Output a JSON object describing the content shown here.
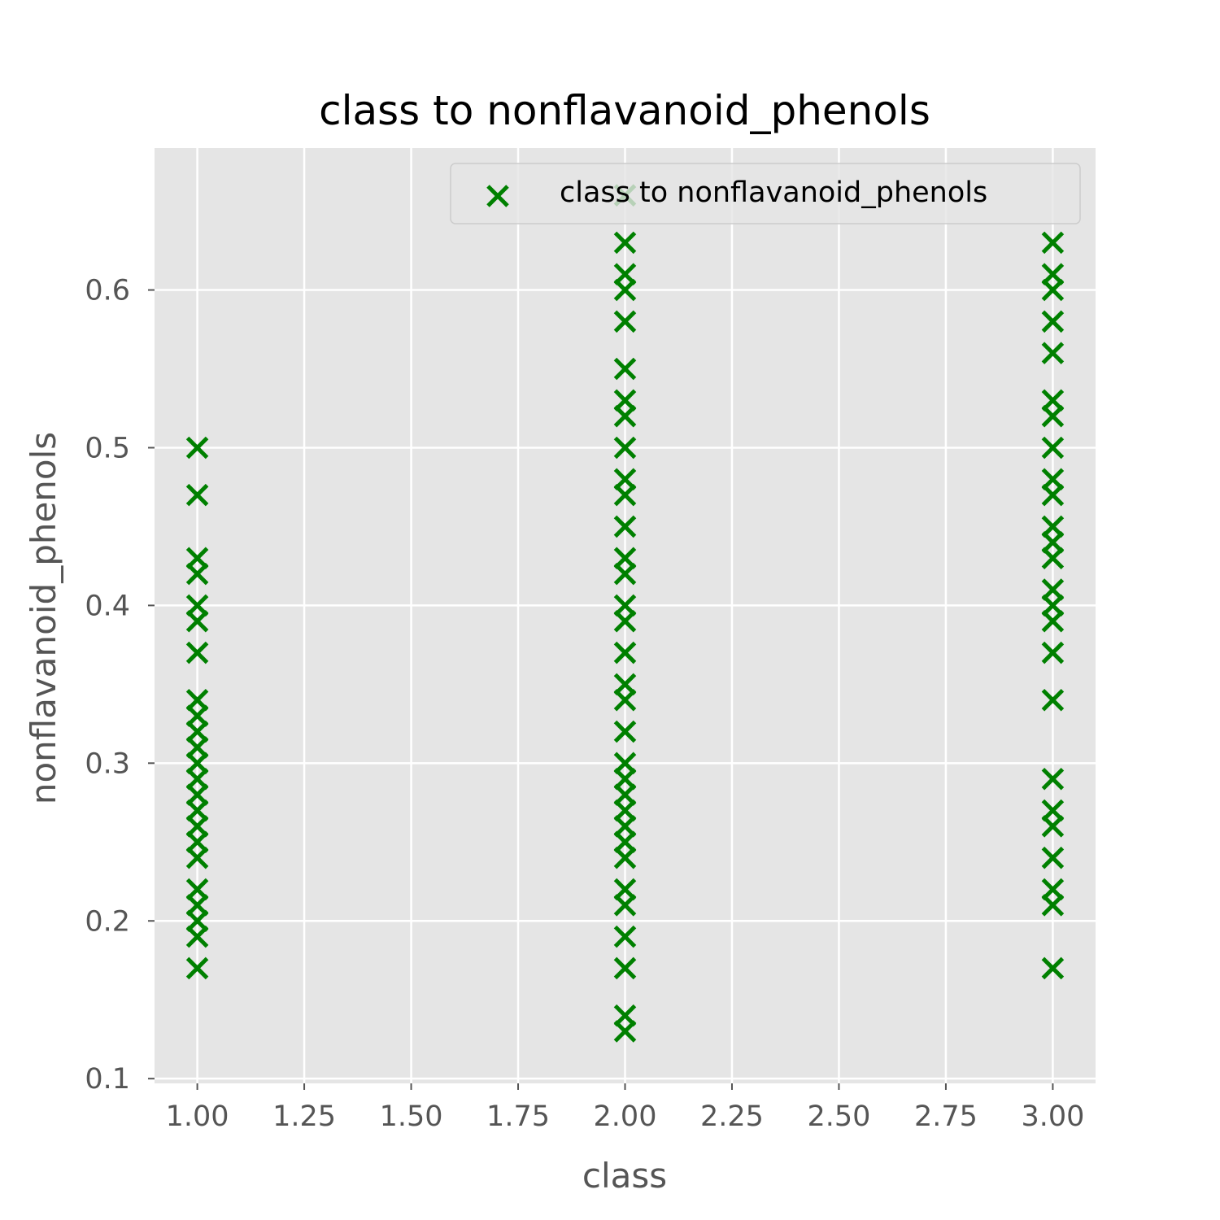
{
  "chart_data": {
    "type": "scatter",
    "title": "class to nonflavanoid_phenols",
    "xlabel": "class",
    "ylabel": "nonflavanoid_phenols",
    "xlim": [
      0.9,
      3.1
    ],
    "ylim": [
      0.097,
      0.69
    ],
    "xticks": [
      1.0,
      1.25,
      1.5,
      1.75,
      2.0,
      2.25,
      2.5,
      2.75,
      3.0
    ],
    "xtick_labels": [
      "1.00",
      "1.25",
      "1.50",
      "1.75",
      "2.00",
      "2.25",
      "2.50",
      "2.75",
      "3.00"
    ],
    "yticks": [
      0.1,
      0.2,
      0.3,
      0.4,
      0.5,
      0.6
    ],
    "ytick_labels": [
      "0.1",
      "0.2",
      "0.3",
      "0.4",
      "0.5",
      "0.6"
    ],
    "grid": true,
    "legend_position": "top-right",
    "marker": "x",
    "colors": {
      "marker": "#008000",
      "plot_bg": "#e5e5e5",
      "grid": "#ffffff"
    },
    "series": [
      {
        "name": "class to nonflavanoid_phenols",
        "points": [
          [
            1,
            0.5
          ],
          [
            1,
            0.47
          ],
          [
            1,
            0.43
          ],
          [
            1,
            0.42
          ],
          [
            1,
            0.4
          ],
          [
            1,
            0.39
          ],
          [
            1,
            0.37
          ],
          [
            1,
            0.34
          ],
          [
            1,
            0.33
          ],
          [
            1,
            0.32
          ],
          [
            1,
            0.31
          ],
          [
            1,
            0.3
          ],
          [
            1,
            0.29
          ],
          [
            1,
            0.28
          ],
          [
            1,
            0.27
          ],
          [
            1,
            0.26
          ],
          [
            1,
            0.25
          ],
          [
            1,
            0.24
          ],
          [
            1,
            0.22
          ],
          [
            1,
            0.21
          ],
          [
            1,
            0.2
          ],
          [
            1,
            0.19
          ],
          [
            1,
            0.17
          ],
          [
            2,
            0.66
          ],
          [
            2,
            0.63
          ],
          [
            2,
            0.61
          ],
          [
            2,
            0.6
          ],
          [
            2,
            0.58
          ],
          [
            2,
            0.55
          ],
          [
            2,
            0.53
          ],
          [
            2,
            0.52
          ],
          [
            2,
            0.5
          ],
          [
            2,
            0.48
          ],
          [
            2,
            0.47
          ],
          [
            2,
            0.45
          ],
          [
            2,
            0.43
          ],
          [
            2,
            0.42
          ],
          [
            2,
            0.4
          ],
          [
            2,
            0.39
          ],
          [
            2,
            0.37
          ],
          [
            2,
            0.35
          ],
          [
            2,
            0.34
          ],
          [
            2,
            0.32
          ],
          [
            2,
            0.3
          ],
          [
            2,
            0.29
          ],
          [
            2,
            0.28
          ],
          [
            2,
            0.27
          ],
          [
            2,
            0.26
          ],
          [
            2,
            0.25
          ],
          [
            2,
            0.24
          ],
          [
            2,
            0.22
          ],
          [
            2,
            0.21
          ],
          [
            2,
            0.19
          ],
          [
            2,
            0.17
          ],
          [
            2,
            0.14
          ],
          [
            2,
            0.13
          ],
          [
            3,
            0.63
          ],
          [
            3,
            0.61
          ],
          [
            3,
            0.6
          ],
          [
            3,
            0.58
          ],
          [
            3,
            0.56
          ],
          [
            3,
            0.53
          ],
          [
            3,
            0.52
          ],
          [
            3,
            0.5
          ],
          [
            3,
            0.48
          ],
          [
            3,
            0.47
          ],
          [
            3,
            0.45
          ],
          [
            3,
            0.44
          ],
          [
            3,
            0.43
          ],
          [
            3,
            0.41
          ],
          [
            3,
            0.4
          ],
          [
            3,
            0.39
          ],
          [
            3,
            0.37
          ],
          [
            3,
            0.34
          ],
          [
            3,
            0.29
          ],
          [
            3,
            0.27
          ],
          [
            3,
            0.26
          ],
          [
            3,
            0.24
          ],
          [
            3,
            0.22
          ],
          [
            3,
            0.21
          ],
          [
            3,
            0.17
          ]
        ]
      }
    ]
  }
}
